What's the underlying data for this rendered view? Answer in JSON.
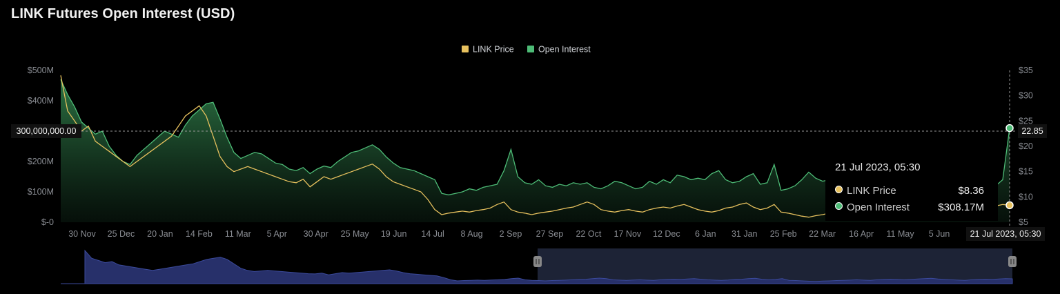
{
  "title": "LINK Futures Open Interest (USD)",
  "colors": {
    "price": "#e7c15e",
    "oi": "#4dbb76",
    "navigator": "#3b4a9c"
  },
  "legend": [
    {
      "label": "LINK Price",
      "color": "#e7c15e"
    },
    {
      "label": "Open Interest",
      "color": "#4dbb76"
    }
  ],
  "tooltip": {
    "time": "21 Jul 2023, 05:30",
    "rows": [
      {
        "label": "LINK Price",
        "value": "$8.36",
        "color": "#e7c15e"
      },
      {
        "label": "Open Interest",
        "value": "$308.17M",
        "color": "#4dbb76"
      }
    ]
  },
  "crosshair": {
    "left_label": "300,000,000.00",
    "right_label": "22.85",
    "x_label": "21 Jul 2023, 05:30"
  },
  "chart_data": {
    "type": "area",
    "title": "LINK Futures Open Interest (USD)",
    "x_ticks": [
      "30 Nov",
      "25 Dec",
      "20 Jan",
      "14 Feb",
      "11 Mar",
      "5 Apr",
      "30 Apr",
      "25 May",
      "19 Jun",
      "14 Jul",
      "8 Aug",
      "2 Sep",
      "27 Sep",
      "22 Oct",
      "17 Nov",
      "12 Dec",
      "6 Jan",
      "31 Jan",
      "25 Feb",
      "22 Mar",
      "16 Apr",
      "11 May",
      "5 Jun"
    ],
    "y_left_ticks": [
      "$-0",
      "$100M",
      "$200M",
      "$300M",
      "$400M",
      "$500M"
    ],
    "y_left_range": [
      0,
      500
    ],
    "y_right_ticks": [
      "$5",
      "$10",
      "$15",
      "$20",
      "$25",
      "$30",
      "$35"
    ],
    "y_right_range": [
      5,
      35
    ],
    "legend_position": "top-center",
    "series": [
      {
        "name": "Open Interest",
        "axis": "left",
        "unit": "M USD",
        "x": [
          0,
          1,
          2,
          3,
          4,
          5,
          6,
          7,
          8,
          9,
          10,
          11,
          12,
          13,
          14,
          15,
          16,
          17,
          18,
          19,
          20,
          21,
          22,
          23,
          24,
          25,
          26,
          27,
          28,
          29,
          30,
          31,
          32,
          33,
          34,
          35,
          36,
          37,
          38,
          39,
          40,
          41,
          42,
          43,
          44,
          45,
          46,
          47,
          48,
          49,
          50,
          51,
          52,
          53,
          54,
          55,
          56,
          57,
          58,
          59,
          60,
          61,
          62,
          63,
          64,
          65,
          66,
          67,
          68,
          69,
          70,
          71,
          72,
          73,
          74,
          75,
          76,
          77,
          78,
          79,
          80,
          81,
          82,
          83,
          84,
          85,
          86,
          87,
          88,
          89,
          90,
          91,
          92,
          93,
          94,
          95,
          96,
          97,
          98,
          99,
          100,
          101,
          102,
          103,
          104,
          105,
          106,
          107,
          108,
          109,
          110,
          111,
          112,
          113,
          114,
          115,
          116,
          117,
          118,
          119,
          120,
          121,
          122,
          123,
          124,
          125,
          126,
          127,
          128,
          129,
          130,
          131,
          132,
          133,
          134,
          135,
          136,
          137
        ],
        "values": [
          470,
          420,
          380,
          330,
          310,
          290,
          300,
          250,
          220,
          200,
          190,
          220,
          240,
          260,
          280,
          300,
          290,
          280,
          320,
          350,
          370,
          390,
          395,
          340,
          280,
          230,
          210,
          220,
          230,
          225,
          210,
          195,
          190,
          175,
          170,
          180,
          160,
          175,
          185,
          180,
          200,
          215,
          230,
          235,
          245,
          255,
          240,
          215,
          195,
          180,
          175,
          170,
          160,
          150,
          140,
          95,
          90,
          95,
          100,
          110,
          105,
          115,
          120,
          125,
          170,
          240,
          150,
          130,
          125,
          140,
          120,
          115,
          125,
          120,
          130,
          125,
          130,
          115,
          110,
          120,
          135,
          130,
          120,
          110,
          115,
          135,
          125,
          140,
          130,
          155,
          150,
          140,
          145,
          140,
          160,
          170,
          140,
          130,
          135,
          150,
          160,
          125,
          130,
          190,
          105,
          110,
          120,
          140,
          165,
          145,
          135,
          140,
          135,
          130,
          120,
          125,
          130,
          120,
          125,
          135,
          130,
          140,
          135,
          130,
          150,
          140,
          135,
          130,
          170,
          150,
          145,
          135,
          130,
          120,
          115,
          120,
          140,
          310
        ],
        "x_end": 137
      },
      {
        "name": "LINK Price",
        "axis": "right",
        "unit": "USD",
        "x": [
          0,
          1,
          2,
          3,
          4,
          5,
          6,
          7,
          8,
          9,
          10,
          11,
          12,
          13,
          14,
          15,
          16,
          17,
          18,
          19,
          20,
          21,
          22,
          23,
          24,
          25,
          26,
          27,
          28,
          29,
          30,
          31,
          32,
          33,
          34,
          35,
          36,
          37,
          38,
          39,
          40,
          41,
          42,
          43,
          44,
          45,
          46,
          47,
          48,
          49,
          50,
          51,
          52,
          53,
          54,
          55,
          56,
          57,
          58,
          59,
          60,
          61,
          62,
          63,
          64,
          65,
          66,
          67,
          68,
          69,
          70,
          71,
          72,
          73,
          74,
          75,
          76,
          77,
          78,
          79,
          80,
          81,
          82,
          83,
          84,
          85,
          86,
          87,
          88,
          89,
          90,
          91,
          92,
          93,
          94,
          95,
          96,
          97,
          98,
          99,
          100,
          101,
          102,
          103,
          104,
          105,
          106,
          107,
          108,
          109,
          110,
          111,
          112,
          113,
          114,
          115,
          116,
          117,
          118,
          119,
          120,
          121,
          122,
          123,
          124,
          125,
          126,
          127,
          128,
          129,
          130,
          131,
          132,
          133,
          134,
          135,
          136,
          137
        ],
        "values": [
          34,
          27,
          25,
          23,
          24,
          21,
          20,
          19,
          18,
          17,
          16,
          17,
          18,
          19,
          20,
          21,
          22,
          24,
          26,
          27,
          28,
          26,
          22,
          18,
          16,
          15,
          15.5,
          16,
          15.5,
          15,
          14.5,
          14,
          13.5,
          13,
          12.8,
          13.5,
          12,
          13,
          14,
          13.5,
          14,
          14.5,
          15,
          15.5,
          16,
          16.5,
          15.5,
          14,
          13,
          12.5,
          12,
          11.5,
          11,
          9.5,
          7.5,
          6.5,
          6.8,
          7,
          7.2,
          7,
          7.3,
          7.5,
          7.8,
          8.5,
          9,
          7.5,
          7,
          6.8,
          6.5,
          6.8,
          7,
          7.2,
          7.5,
          7.8,
          8,
          8.5,
          9,
          8.5,
          7.5,
          7.2,
          7,
          7.3,
          7.5,
          7.2,
          7,
          7.5,
          7.8,
          8,
          7.8,
          8.2,
          8.5,
          8,
          7.5,
          7.2,
          7,
          7.3,
          7.8,
          8,
          8.5,
          8.8,
          8,
          7.5,
          7.8,
          8.5,
          7,
          6.8,
          6.5,
          6.2,
          6,
          6.3,
          6.5,
          6.8,
          7,
          7.2,
          7.5,
          7.2,
          7,
          7.5,
          7.8,
          8,
          7.8,
          7.5,
          7.8,
          8.2,
          8.5,
          8.8,
          8.2,
          7.8,
          7.5,
          7.2,
          7,
          7.5,
          7.8,
          8,
          7.8,
          8.2,
          8.5,
          8.36
        ],
        "x_end": 137
      }
    ]
  }
}
